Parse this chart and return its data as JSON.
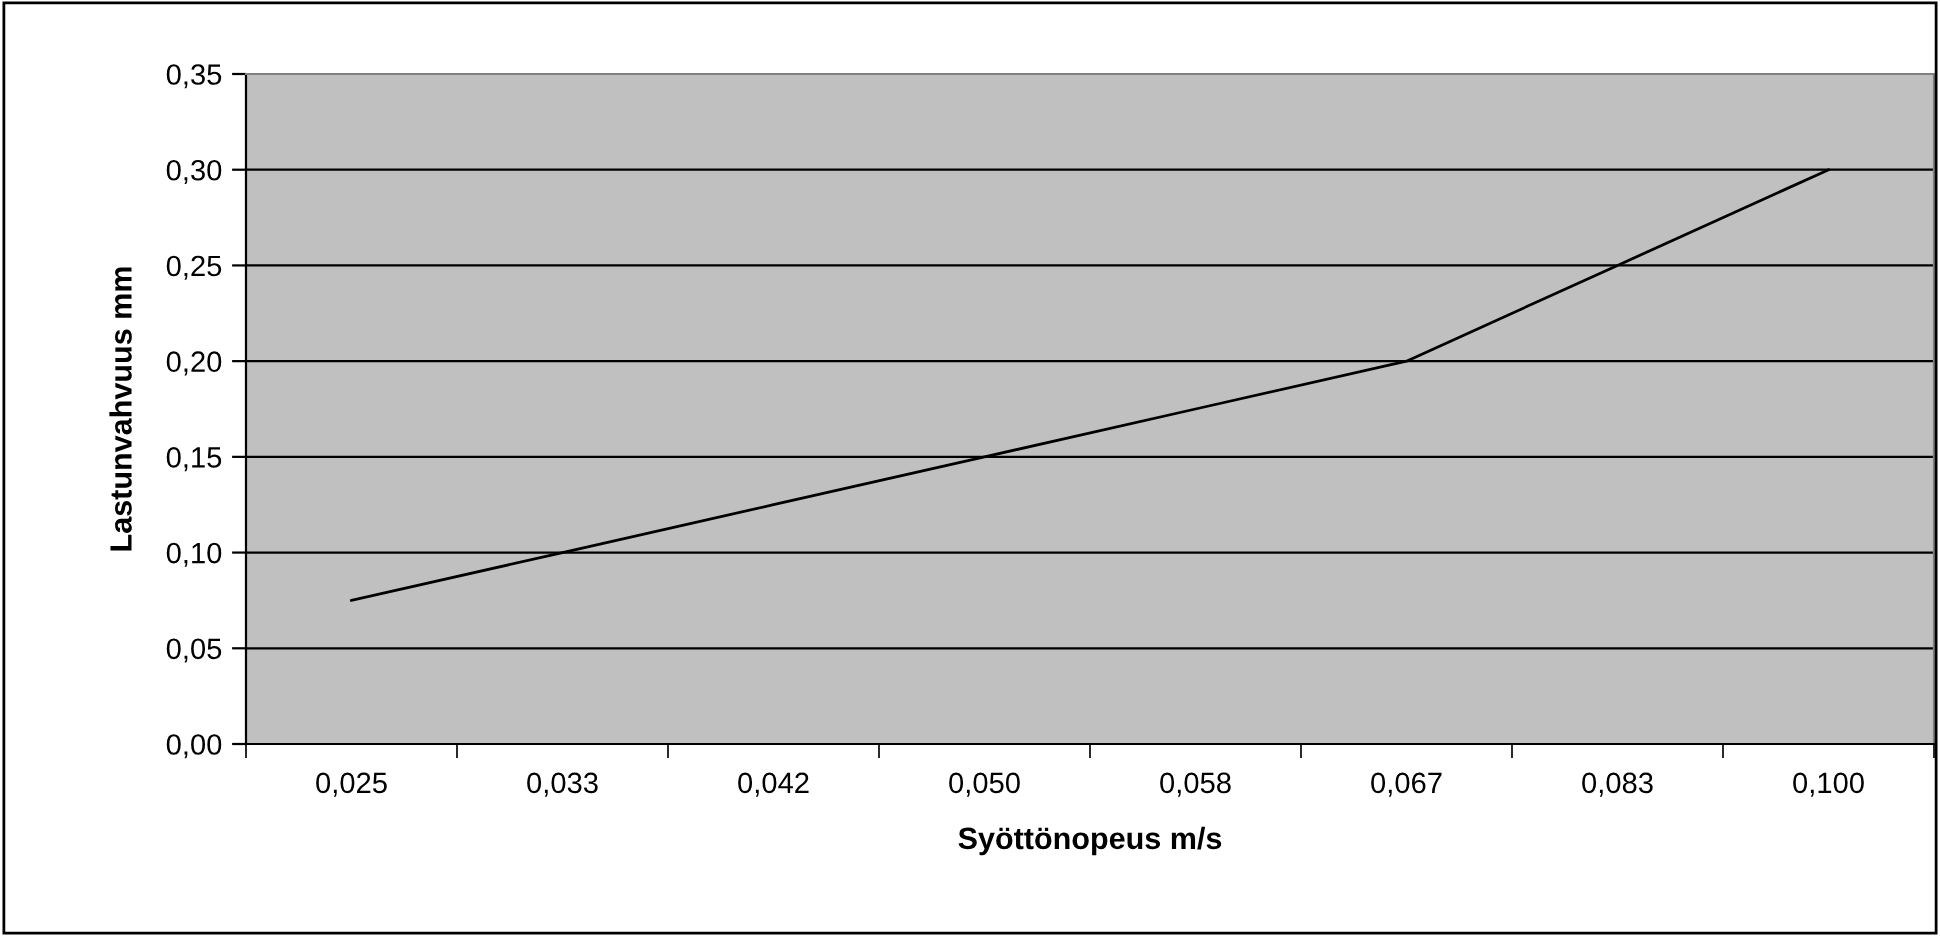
{
  "chart_data": {
    "type": "line",
    "xlabel": "Syöttönopeus m/s",
    "ylabel": "Lastunvahvuus mm",
    "categories": [
      "0,025",
      "0,033",
      "0,042",
      "0,050",
      "0,058",
      "0,067",
      "0,083",
      "0,100"
    ],
    "series": [
      {
        "color": "#000000",
        "values": [
          0.075,
          0.1,
          0.125,
          0.15,
          0.175,
          0.2,
          0.25,
          0.3
        ]
      }
    ],
    "ylim": [
      0,
      0.35
    ],
    "yticks": [
      {
        "value": 0,
        "label": "0,00"
      },
      {
        "value": 0.05,
        "label": "0,05"
      },
      {
        "value": 0.1,
        "label": "0,10"
      },
      {
        "value": 0.15,
        "label": "0,15"
      },
      {
        "value": 0.2,
        "label": "0,20"
      },
      {
        "value": 0.25,
        "label": "0,25"
      },
      {
        "value": 0.3,
        "label": "0,30"
      },
      {
        "value": 0.35,
        "label": "0,35"
      }
    ],
    "grid": "y",
    "legend": false,
    "marker": "none",
    "line_style": "solid"
  }
}
